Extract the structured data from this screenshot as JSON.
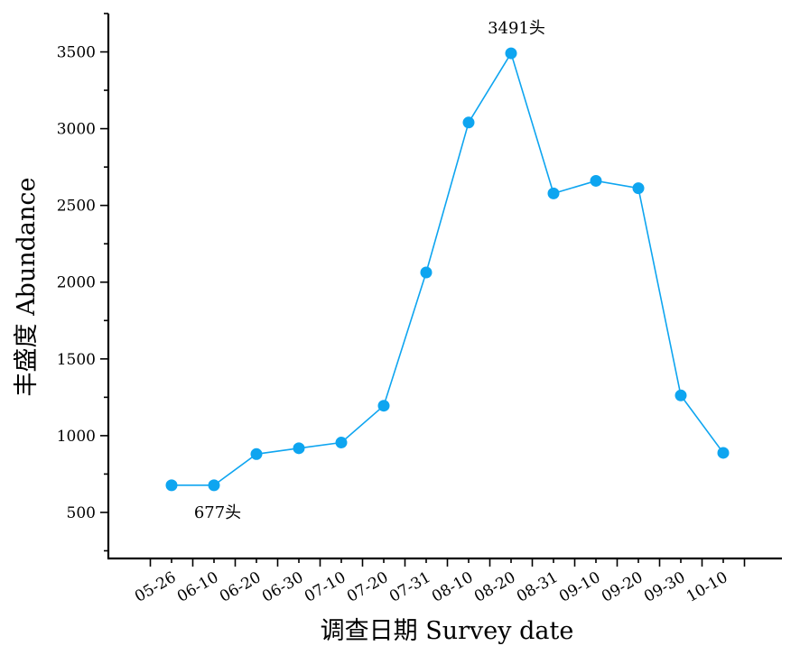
{
  "chart_data": {
    "type": "line",
    "xlabel": "调查日期  Survey date",
    "ylabel": "丰盛度  Abundance",
    "categories": [
      "05-26",
      "06-10",
      "06-20",
      "06-30",
      "07-10",
      "07-20",
      "07-31",
      "08-10",
      "08-20",
      "08-31",
      "09-10",
      "09-20",
      "09-30",
      "10-10"
    ],
    "series": [
      {
        "values": [
          677,
          677,
          880,
          918,
          955,
          1195,
          2063,
          3040,
          3491,
          2578,
          2660,
          2612,
          1262,
          888
        ]
      }
    ],
    "yticks": [
      500,
      1000,
      1500,
      2000,
      2500,
      3000,
      3500
    ],
    "ytick_labels": [
      "500",
      "1000",
      "1500",
      "2000",
      "2500",
      "3000",
      "3500"
    ],
    "ylim": [
      200,
      3750
    ],
    "grid": false,
    "color": "#0ea5f0",
    "annotations": [
      {
        "category": "08-20",
        "text": "3491头"
      },
      {
        "category": "06-10",
        "text": "677头"
      }
    ]
  }
}
